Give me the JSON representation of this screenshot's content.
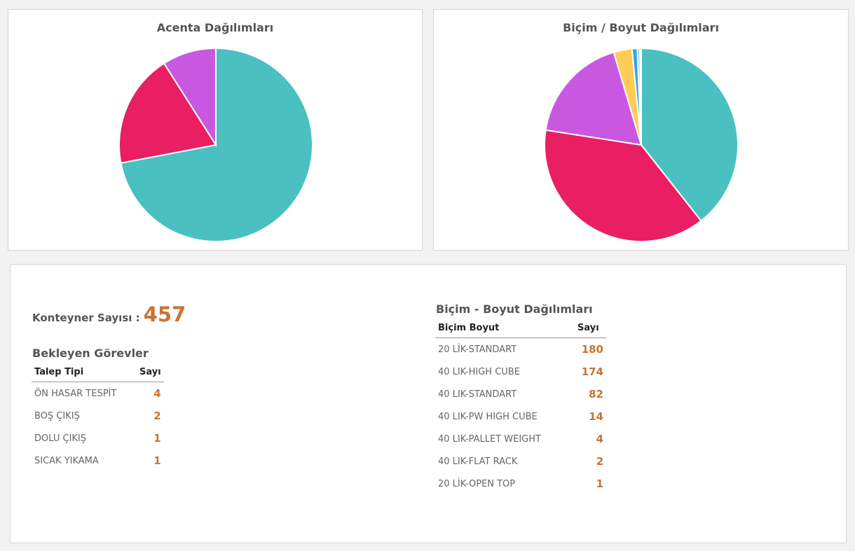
{
  "chart_data": [
    {
      "type": "pie",
      "title": "Acenta Dağılımları",
      "values": [
        72,
        19,
        9
      ],
      "colors": [
        "#4bc0c0",
        "#e91e63",
        "#c858e0"
      ]
    },
    {
      "type": "pie",
      "title": "Biçim / Boyut Dağılımları",
      "values": [
        180,
        174,
        82,
        14,
        4,
        2,
        1
      ],
      "colors": [
        "#4bc0c0",
        "#e91e63",
        "#c858e0",
        "#ffcd56",
        "#36a2eb",
        "#7fd9e8",
        "#c858e0"
      ]
    }
  ],
  "summary": {
    "count_label": "Konteyner Sayısı :",
    "count_value": "457"
  },
  "tasks": {
    "title": "Bekleyen Görevler",
    "headers": [
      "Talep Tipi",
      "Sayı"
    ],
    "rows": [
      [
        "ÖN HASAR TESPİT",
        "4"
      ],
      [
        "BOŞ ÇIKIŞ",
        "2"
      ],
      [
        "DOLU ÇIKIŞ",
        "1"
      ],
      [
        "SICAK YIKAMA",
        "1"
      ]
    ]
  },
  "sizes": {
    "title": "Biçim - Boyut Dağılımları",
    "headers": [
      "Biçim Boyut",
      "Sayı"
    ],
    "rows": [
      [
        "20 LİK-STANDART",
        "180"
      ],
      [
        "40 LIK-HIGH CUBE",
        "174"
      ],
      [
        "40 LIK-STANDART",
        "82"
      ],
      [
        "40 LIK-PW HIGH CUBE",
        "14"
      ],
      [
        "40 LIK-PALLET WEIGHT",
        "4"
      ],
      [
        "40 LIK-FLAT RACK",
        "2"
      ],
      [
        "20 LİK-OPEN TOP",
        "1"
      ]
    ]
  }
}
